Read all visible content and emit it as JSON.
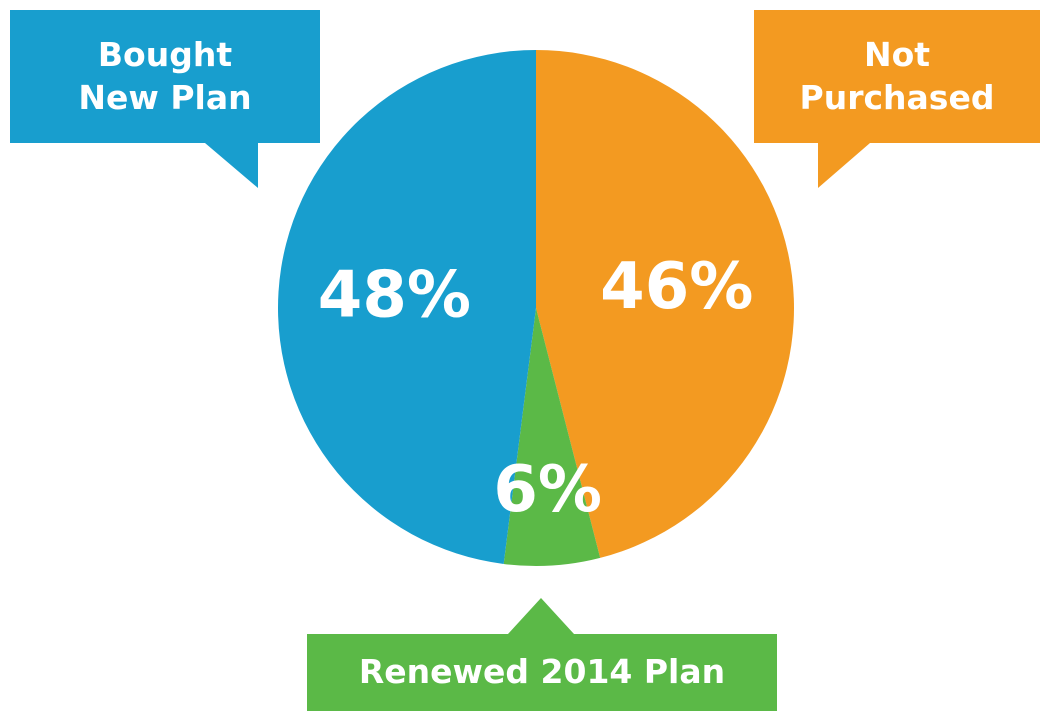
{
  "chart_data": {
    "type": "pie",
    "categories": [
      "Not Purchased",
      "Renewed 2014 Plan",
      "Bought New Plan"
    ],
    "values": [
      46,
      6,
      48
    ],
    "value_labels": [
      "46%",
      "6%",
      "48%"
    ],
    "colors": [
      "#f39a21",
      "#5bb947",
      "#189ece"
    ]
  }
}
